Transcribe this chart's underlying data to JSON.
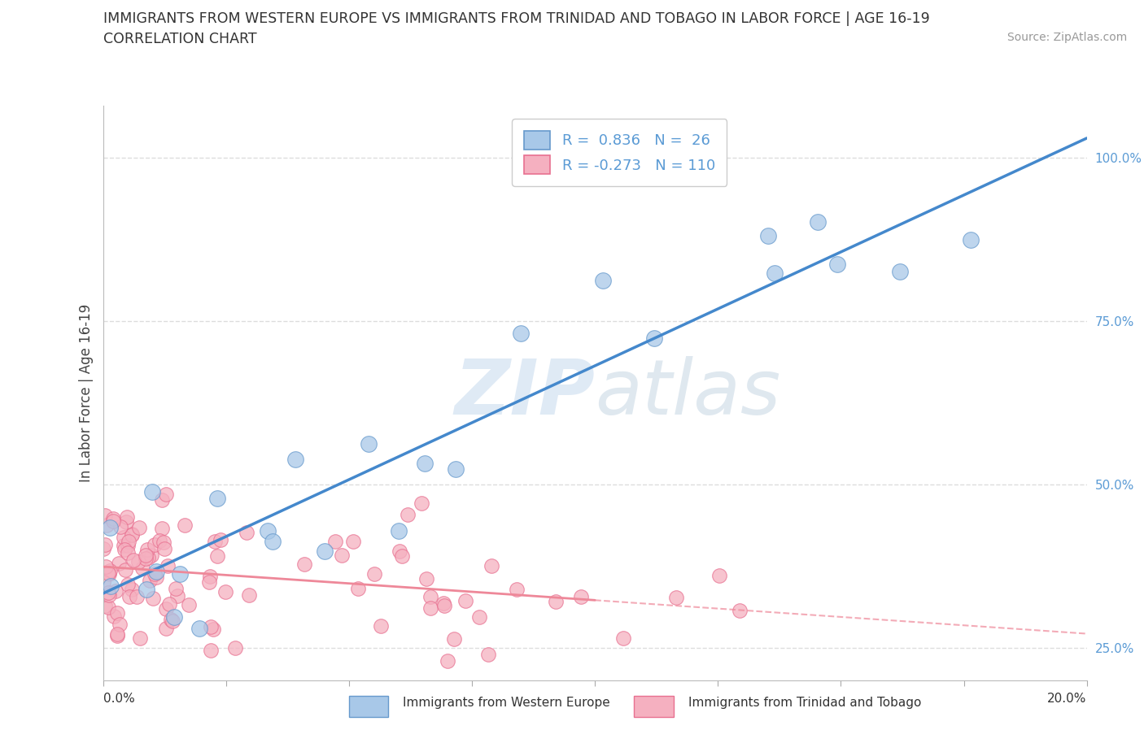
{
  "title_line1": "IMMIGRANTS FROM WESTERN EUROPE VS IMMIGRANTS FROM TRINIDAD AND TOBAGO IN LABOR FORCE | AGE 16-19",
  "title_line2": "CORRELATION CHART",
  "source_text": "Source: ZipAtlas.com",
  "ylabel": "In Labor Force | Age 16-19",
  "x_min": 0.0,
  "x_max": 0.2,
  "y_min": 0.2,
  "y_max": 1.08,
  "y_ticks": [
    0.25,
    0.5,
    0.75,
    1.0
  ],
  "y_tick_labels": [
    "25.0%",
    "50.0%",
    "75.0%",
    "100.0%"
  ],
  "r_blue": 0.836,
  "n_blue": 26,
  "r_pink": -0.273,
  "n_pink": 110,
  "blue_fill": "#A8C8E8",
  "pink_fill": "#F5B0C0",
  "blue_edge": "#6699CC",
  "pink_edge": "#E87090",
  "blue_line": "#4488CC",
  "pink_line": "#EE8899",
  "legend_label_blue": "Immigrants from Western Europe",
  "legend_label_pink": "Immigrants from Trinidad and Tobago",
  "watermark_zip": "ZIP",
  "watermark_atlas": "atlas",
  "background_color": "#FFFFFF",
  "grid_color": "#DDDDDD",
  "tick_color": "#5B9BD5",
  "title_color": "#333333",
  "source_color": "#999999",
  "label_color": "#444444"
}
